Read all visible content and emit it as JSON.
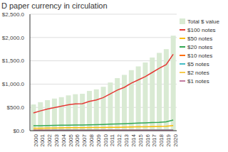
{
  "chart_data": {
    "type": "bar",
    "title": "D paper currency in circulation",
    "categories": [
      "2000",
      "2001",
      "2002",
      "2003",
      "2004",
      "2005",
      "2006",
      "2007",
      "2008",
      "2009",
      "2010",
      "2011",
      "2012",
      "2013",
      "2014",
      "2015",
      "2016",
      "2017",
      "2018",
      "2019",
      "2020"
    ],
    "series": [
      {
        "name": "Total $ value",
        "type": "bar",
        "color": "#d9ead3",
        "values": [
          563,
          612,
          655,
          690,
          720,
          758,
          783,
          792,
          853,
          888,
          942,
          1034,
          1128,
          1198,
          1299,
          1380,
          1464,
          1570,
          1670,
          1750,
          2040
        ]
      },
      {
        "name": "$100 notes",
        "type": "line",
        "color": "#e53935",
        "values": [
          380,
          425,
          465,
          495,
          525,
          555,
          575,
          580,
          630,
          660,
          710,
          790,
          870,
          930,
          1020,
          1090,
          1160,
          1250,
          1340,
          1420,
          1640
        ]
      },
      {
        "name": "$50 notes",
        "type": "line",
        "color": "#fbbc04",
        "values": [
          52,
          55,
          57,
          59,
          61,
          63,
          64,
          65,
          67,
          68,
          70,
          72,
          74,
          76,
          79,
          82,
          85,
          89,
          92,
          95,
          110
        ]
      },
      {
        "name": "$20 notes",
        "type": "line",
        "color": "#34a853",
        "values": [
          105,
          108,
          112,
          115,
          118,
          120,
          122,
          123,
          127,
          130,
          135,
          140,
          145,
          150,
          155,
          162,
          168,
          175,
          180,
          190,
          230
        ]
      },
      {
        "name": "$10 notes",
        "type": "line",
        "color": "#ff6d01",
        "values": [
          14,
          14,
          14,
          14,
          14,
          14,
          14,
          14,
          14,
          14,
          14,
          15,
          15,
          15,
          16,
          16,
          17,
          18,
          18,
          19,
          20
        ]
      },
      {
        "name": "$5 notes",
        "type": "line",
        "color": "#46bdc6",
        "values": [
          8,
          9,
          9,
          10,
          10,
          10,
          10,
          10,
          10,
          11,
          11,
          11,
          12,
          12,
          13,
          13,
          13,
          14,
          14,
          15,
          16
        ]
      },
      {
        "name": "$2 notes",
        "type": "line",
        "color": "#f7cb4d",
        "values": [
          1,
          1,
          1,
          1,
          1,
          1,
          1,
          1,
          1,
          1,
          1,
          2,
          2,
          2,
          2,
          2,
          2,
          2,
          2,
          2,
          2
        ]
      },
      {
        "name": "$1 notes",
        "type": "line",
        "color": "#c27ba0",
        "values": [
          7,
          7,
          8,
          8,
          8,
          8,
          9,
          9,
          9,
          9,
          10,
          10,
          10,
          10,
          11,
          11,
          12,
          12,
          12,
          12,
          13
        ]
      }
    ],
    "ylim": [
      0,
      2500
    ],
    "yticks": [
      {
        "value": 0,
        "label": "$0.0"
      },
      {
        "value": 500,
        "label": "$500.0"
      },
      {
        "value": 1000,
        "label": "$1,000.0"
      },
      {
        "value": 1500,
        "label": "$1,500.0"
      },
      {
        "value": 2000,
        "label": "$2,000.0"
      },
      {
        "value": 2500,
        "label": "$2,500.0"
      }
    ],
    "grid": true,
    "legend": "right"
  }
}
